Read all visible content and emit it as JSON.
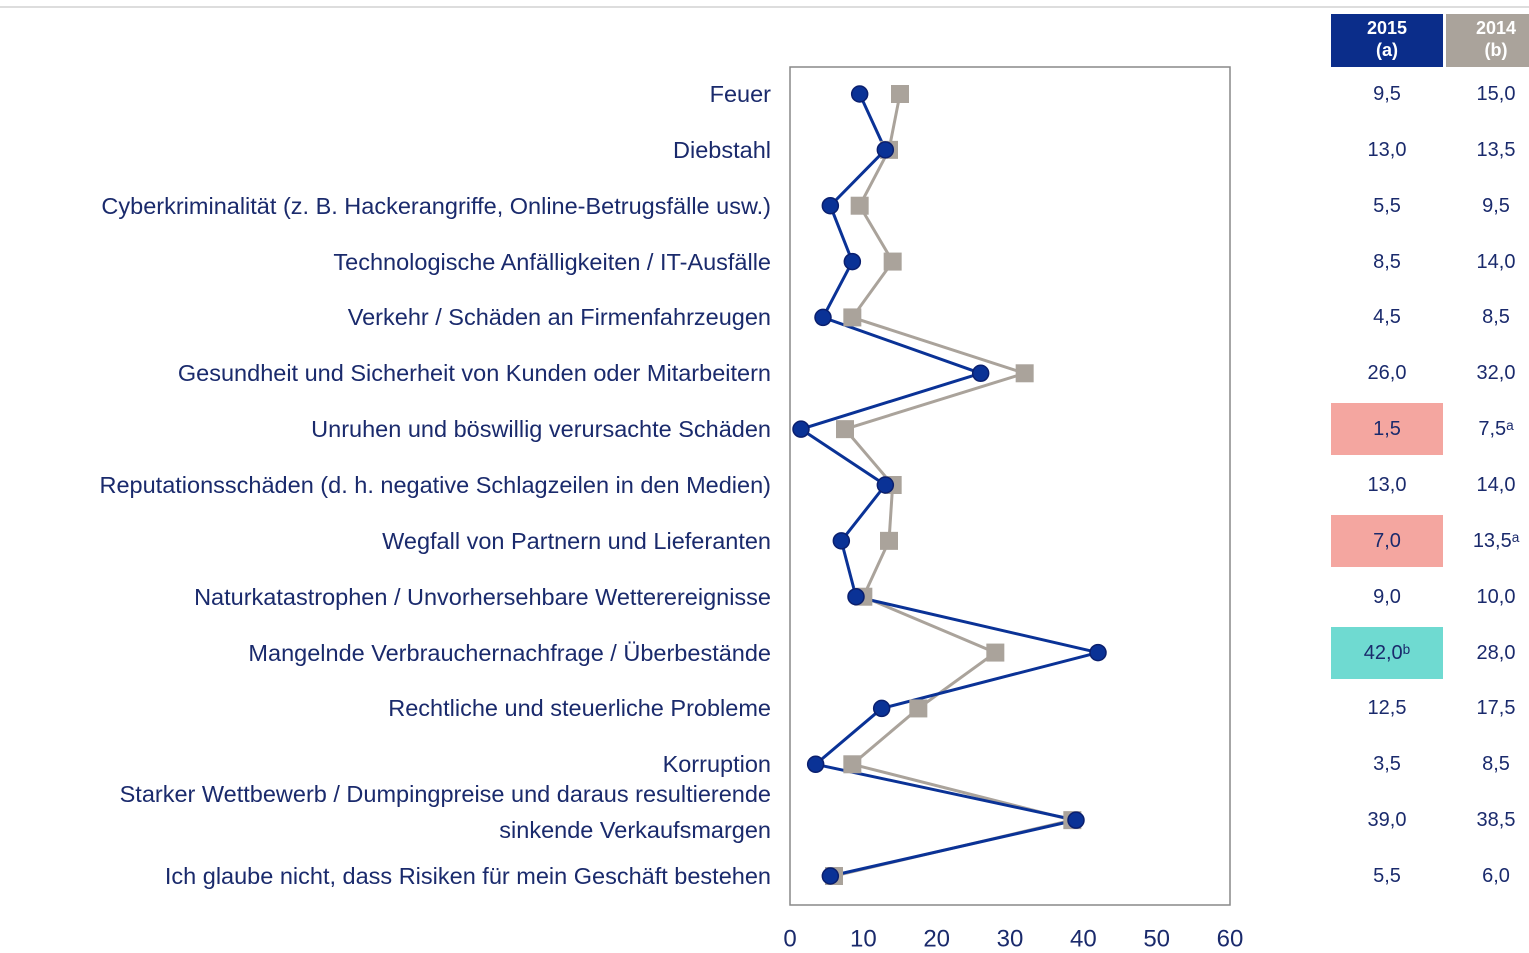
{
  "chart_data": {
    "type": "line",
    "orientation": "horizontal",
    "categories": [
      "Feuer",
      "Diebstahl",
      "Cyberkriminalität (z. B. Hackerangriffe, Online-Betrugsfälle usw.)",
      "Technologische Anfälligkeiten / IT-Ausfälle",
      "Verkehr / Schäden an Firmenfahrzeugen",
      "Gesundheit und Sicherheit von Kunden oder Mitarbeitern",
      "Unruhen und böswillig verursachte Schäden",
      "Reputationsschäden (d. h. negative Schlagzeilen in den Medien)",
      "Wegfall von Partnern und Lieferanten",
      "Naturkatastrophen / Unvorhersehbare Wetterereignisse",
      "Mangelnde Verbrauchernachfrage / Überbestände",
      "Rechtliche und steuerliche Probleme",
      "Korruption",
      "Starker Wettbewerb / Dumpingpreise und daraus resultierende\nsinkende Verkaufsmargen",
      "Ich glaube nicht, dass Risiken für mein Geschäft bestehen"
    ],
    "series": [
      {
        "name": "2015",
        "sub": "(a)",
        "color": "#0a3296",
        "header_color": "#0b2d8a",
        "marker": "circle",
        "values": [
          9.5,
          13,
          5.5,
          8.5,
          4.5,
          26,
          1.5,
          13,
          7,
          9,
          42,
          12.5,
          3.5,
          39,
          5.5
        ],
        "value_labels": [
          "9,5",
          "13,0",
          "5,5",
          "8,5",
          "4,5",
          "26,0",
          "1,5",
          "13,0",
          "7,0",
          "9,0",
          "42,0ᵇ",
          "12,5",
          "3,5",
          "39,0",
          "5,5"
        ],
        "highlight": [
          null,
          null,
          null,
          null,
          null,
          null,
          "#f4a6a0",
          null,
          "#f4a6a0",
          null,
          "#6fdad1",
          null,
          null,
          null,
          null
        ]
      },
      {
        "name": "2014",
        "sub": "(b)",
        "color": "#aaa39b",
        "header_color": "#aaa39b",
        "marker": "square",
        "values": [
          15,
          13.5,
          9.5,
          14,
          8.5,
          32,
          7.5,
          14,
          13.5,
          10,
          28,
          17.5,
          8.5,
          38.5,
          6
        ],
        "value_labels": [
          "15,0",
          "13,5",
          "9,5",
          "14,0",
          "8,5",
          "32,0",
          "7,5ᵃ",
          "14,0",
          "13,5ᵃ",
          "10,0",
          "28,0",
          "17,5",
          "8,5",
          "38,5",
          "6,0"
        ],
        "highlight": [
          null,
          null,
          null,
          null,
          null,
          null,
          null,
          null,
          null,
          null,
          null,
          null,
          null,
          null,
          null
        ]
      }
    ],
    "xlim": [
      0,
      60
    ],
    "xticks": [
      0,
      10,
      20,
      30,
      40,
      50,
      60
    ]
  }
}
